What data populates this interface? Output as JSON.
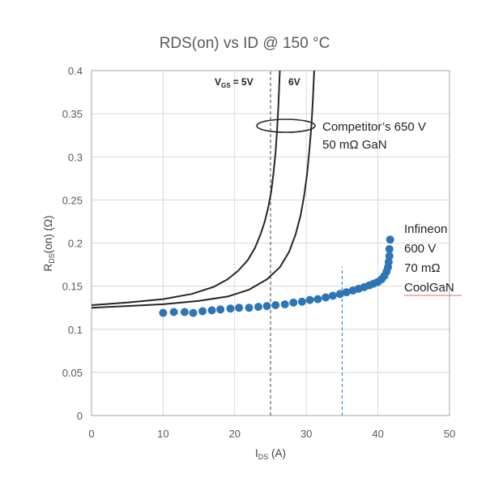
{
  "chart_data": {
    "type": "scatter",
    "title": "RDS(on) vs ID @ 150 °C",
    "xlabel": {
      "main": "I",
      "sub": "DS",
      "tail": " (A)"
    },
    "ylabel": {
      "main": "R",
      "sub": "DS",
      "tail": "(on) (Ω)"
    },
    "xlim": [
      0,
      50
    ],
    "ylim": [
      0,
      0.4
    ],
    "x_ticks": [
      0,
      10,
      20,
      30,
      40,
      50
    ],
    "y_ticks": [
      0,
      0.05,
      0.1,
      0.15,
      0.2,
      0.25,
      0.3,
      0.35,
      0.4
    ],
    "x_tick_labels": [
      "0",
      "10",
      "20",
      "30",
      "40",
      "50"
    ],
    "y_tick_labels": [
      "0",
      "0.05",
      "0.1",
      "0.15",
      "0.2",
      "0.25",
      "0.3",
      "0.35",
      "0.4"
    ],
    "grid": true,
    "colors": {
      "infineon": "#2E75B6",
      "competitor": "#262626",
      "grid": "#D9D9D9",
      "axis": "#A6A6A6"
    },
    "series": [
      {
        "name": "Infineon 600 V 70 mΩ CoolGaN",
        "style": "markers",
        "x": [
          10,
          11.5,
          13,
          14.2,
          15.5,
          16.8,
          18,
          19.4,
          20.6,
          22,
          23.3,
          24.5,
          25.7,
          27,
          28.2,
          29.4,
          30.5,
          31.6,
          32.7,
          33.7,
          34.7,
          35.6,
          36.5,
          37.3,
          38.1,
          38.8,
          39.4,
          40,
          40.5,
          40.9,
          41.2,
          41.4,
          41.5,
          41.6,
          41.6,
          41.7
        ],
        "y": [
          0.119,
          0.12,
          0.12,
          0.119,
          0.121,
          0.122,
          0.123,
          0.124,
          0.125,
          0.125,
          0.126,
          0.127,
          0.128,
          0.129,
          0.131,
          0.132,
          0.134,
          0.135,
          0.137,
          0.139,
          0.141,
          0.143,
          0.145,
          0.147,
          0.149,
          0.151,
          0.153,
          0.155,
          0.158,
          0.162,
          0.167,
          0.172,
          0.178,
          0.185,
          0.193,
          0.204
        ]
      },
      {
        "name": "Competitor VGS 5V",
        "style": "line",
        "x": [
          0,
          5,
          10,
          14,
          17,
          19,
          20.5,
          21.8,
          22.8,
          23.6,
          24.2,
          24.7,
          25.1,
          25.4,
          25.7,
          25.9,
          26.1,
          26.3
        ],
        "y": [
          0.128,
          0.131,
          0.135,
          0.141,
          0.149,
          0.158,
          0.168,
          0.18,
          0.194,
          0.21,
          0.225,
          0.242,
          0.26,
          0.28,
          0.305,
          0.33,
          0.36,
          0.4
        ]
      },
      {
        "name": "Competitor VGS 6V",
        "style": "line",
        "x": [
          0,
          5,
          10,
          15,
          19,
          22,
          24.5,
          26.3,
          27.6,
          28.5,
          29.2,
          29.7,
          30.1,
          30.4,
          30.7,
          30.9,
          31.1
        ],
        "y": [
          0.125,
          0.127,
          0.129,
          0.133,
          0.138,
          0.146,
          0.158,
          0.172,
          0.19,
          0.21,
          0.232,
          0.255,
          0.28,
          0.305,
          0.335,
          0.365,
          0.4
        ]
      }
    ],
    "vlines": [
      {
        "x": 25,
        "y_top": 0.4,
        "color": "#404040"
      },
      {
        "x": 35,
        "y_top": 0.172,
        "color": "#2E75B6"
      }
    ],
    "annotations": {
      "vgs_label": "V",
      "vgs_sub": "GS",
      "vgs_eq": "=  5V",
      "vgs_6v": "6V",
      "competitor_line1": "Competitor’s 650 V",
      "competitor_line2": "50 mΩ GaN",
      "infineon_line1": "Infineon",
      "infineon_line2": "600 V",
      "infineon_line3": "70 mΩ",
      "infineon_line4": "CoolGaN"
    }
  }
}
